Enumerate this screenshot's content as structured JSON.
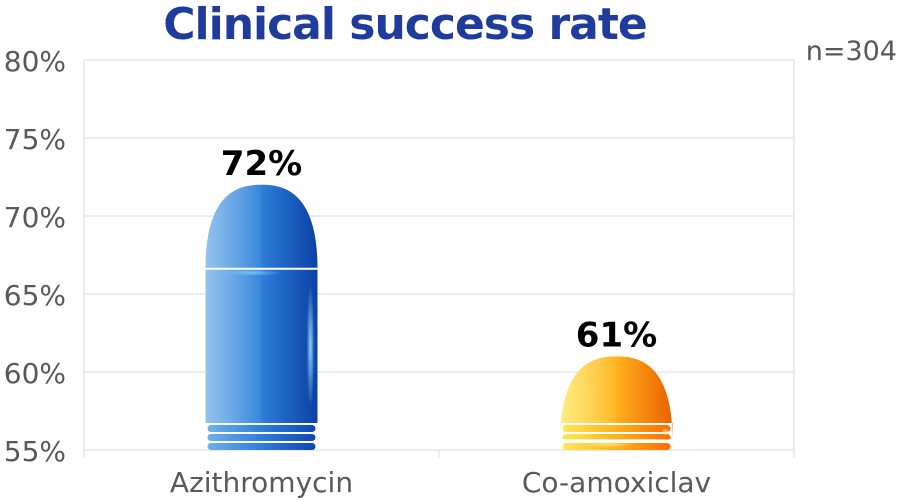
{
  "chart_data": {
    "type": "bar",
    "title": "Clinical success rate",
    "annotation": "n=304",
    "categories": [
      "Azithromycin",
      "Co-amoxiclav"
    ],
    "values": [
      72,
      61
    ],
    "data_labels": [
      "72%",
      "61%"
    ],
    "ylim": [
      55,
      80
    ],
    "yticks": [
      55,
      60,
      65,
      70,
      75,
      80
    ],
    "ytick_labels": [
      "55%",
      "60%",
      "65%",
      "70%",
      "75%",
      "80%"
    ],
    "xlabel": "",
    "ylabel": "",
    "grid": true,
    "legend": "none",
    "bar_style": "capsule",
    "colors": {
      "bars": [
        {
          "light": "#6fb0ea",
          "mid": "#2c7fd8",
          "dark": "#0d47b5",
          "glow": "#9fe0ff"
        },
        {
          "light": "#ffe85a",
          "mid": "#ffb21c",
          "dark": "#ff6a00",
          "glow": "#fff3a0"
        }
      ],
      "title": "#1f3c9c",
      "axis_text": "#595959",
      "grid": "#d9d9d9",
      "data_label": "#000000"
    }
  }
}
